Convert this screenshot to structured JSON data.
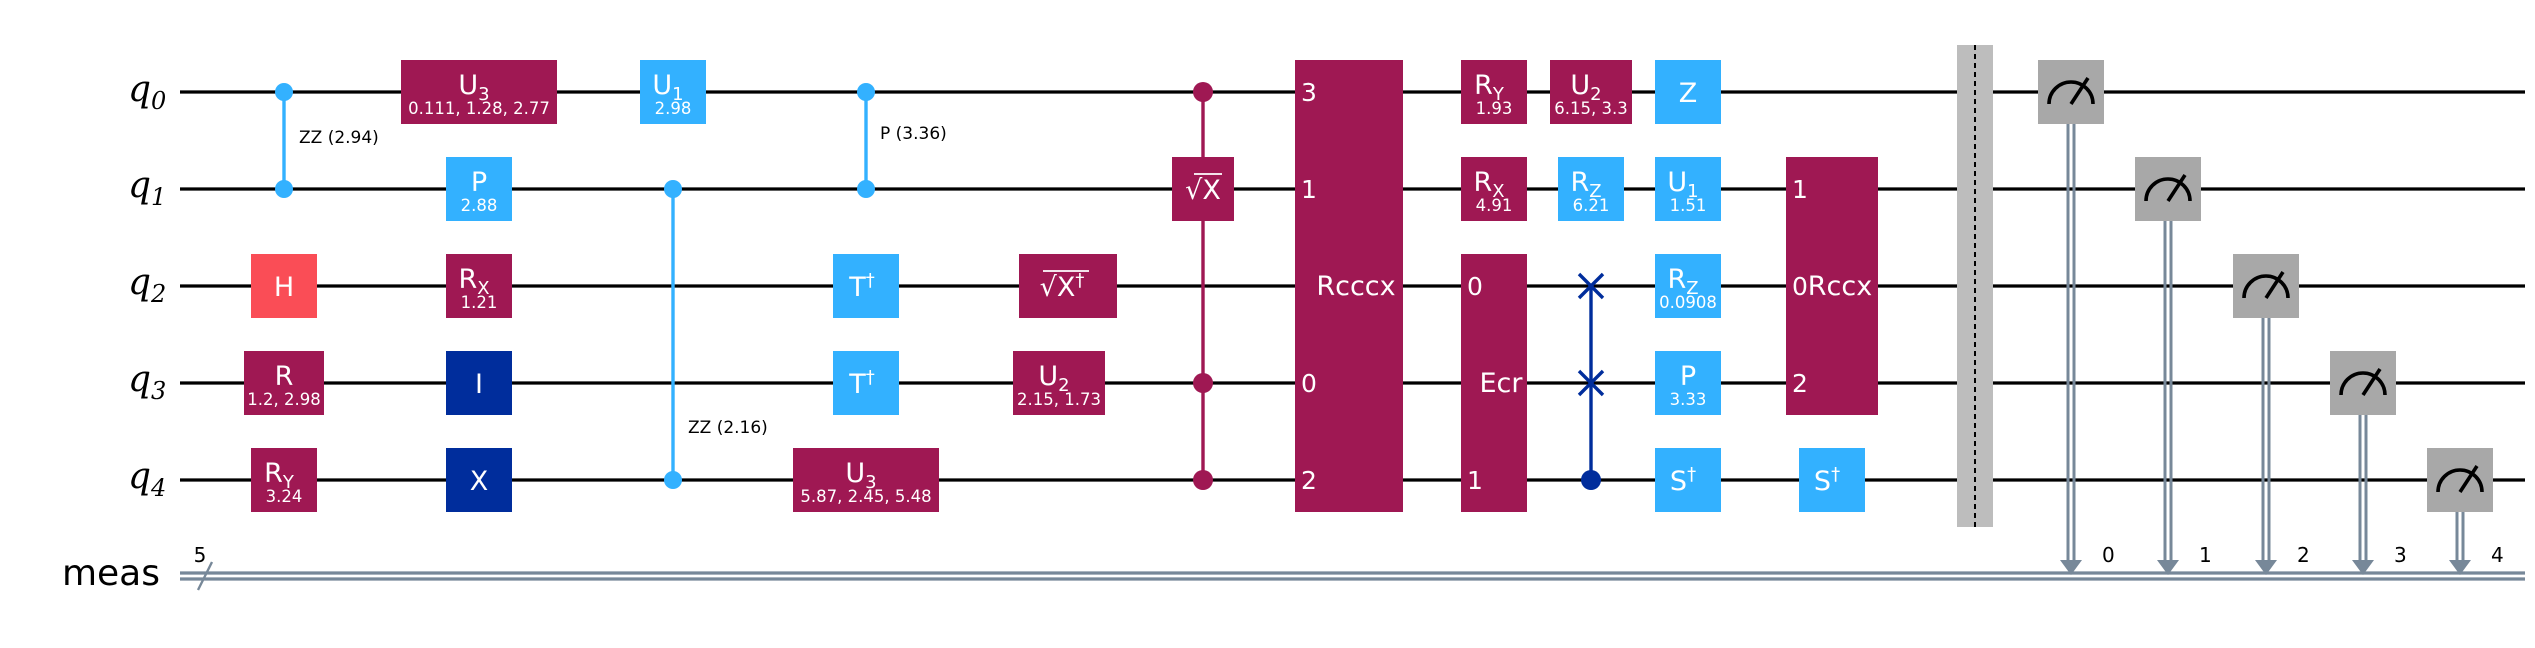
{
  "colors": {
    "purple": "#9f1853",
    "light_blue": "#33b1ff",
    "dark_blue": "#002d9c",
    "red": "#fa4d56",
    "gray": "#a8a8a8",
    "barrier": "#bdbdbd",
    "classical": "#778899"
  },
  "qubits": [
    {
      "base": "q",
      "sub": "0"
    },
    {
      "base": "q",
      "sub": "1"
    },
    {
      "base": "q",
      "sub": "2"
    },
    {
      "base": "q",
      "sub": "3"
    },
    {
      "base": "q",
      "sub": "4"
    }
  ],
  "creg": {
    "label": "meas",
    "size": "5"
  },
  "gates": {
    "h_q2": {
      "label": "H"
    },
    "r_q3": {
      "label": "R",
      "params": "1.2, 2.98"
    },
    "ry_q4": {
      "base": "R",
      "sub": "Y",
      "params": "3.24"
    },
    "rzz_a": {
      "label": "ZZ (2.94)"
    },
    "u3_q0": {
      "base": "U",
      "sub": "3",
      "params": "0.111, 1.28, 2.77"
    },
    "p_q1": {
      "label": "P",
      "params": "2.88"
    },
    "rx_q2": {
      "base": "R",
      "sub": "X",
      "params": "1.21"
    },
    "i_q3": {
      "label": "I"
    },
    "x_q4": {
      "label": "X"
    },
    "u1_q0": {
      "base": "U",
      "sub": "1",
      "params": "2.98"
    },
    "rzz_b": {
      "label": "ZZ (2.16)"
    },
    "cp": {
      "label": "P (3.36)"
    },
    "tdg_q2": {
      "label": "T",
      "sup": "†"
    },
    "tdg_q3": {
      "label": "T",
      "sup": "†"
    },
    "u3_q4": {
      "base": "U",
      "sub": "3",
      "params": "5.87, 2.45, 5.48"
    },
    "sxdg_q2": {
      "label": "√X",
      "sup": "†"
    },
    "u2_q3": {
      "base": "U",
      "sub": "2",
      "params": "2.15, 1.73"
    },
    "csx": {
      "label": "√X"
    },
    "rcccx": {
      "label": "Rcccx",
      "ports": [
        "3",
        "1",
        "0",
        "2"
      ]
    },
    "ry_q0": {
      "base": "R",
      "sub": "Y",
      "params": "1.93"
    },
    "rx_q1": {
      "base": "R",
      "sub": "X",
      "params": "4.91"
    },
    "ecr": {
      "label": "Ecr",
      "ports": [
        "0",
        "1"
      ]
    },
    "u2_q0": {
      "base": "U",
      "sub": "2",
      "params": "6.15, 3.3"
    },
    "rz_q1": {
      "base": "R",
      "sub": "Z",
      "params": "6.21"
    },
    "z_q0": {
      "label": "Z"
    },
    "u1_q1": {
      "base": "U",
      "sub": "1",
      "params": "1.51"
    },
    "rz_q2": {
      "base": "R",
      "sub": "Z",
      "params": "0.0908"
    },
    "p_q3": {
      "label": "P",
      "params": "3.33"
    },
    "sdg_q4a": {
      "label": "S",
      "sup": "†"
    },
    "rccx": {
      "label": "Rccx",
      "ports": [
        "1",
        "0",
        "2"
      ]
    },
    "sdg_q4b": {
      "label": "S",
      "sup": "†"
    }
  },
  "measure_bits": [
    "0",
    "1",
    "2",
    "3",
    "4"
  ]
}
